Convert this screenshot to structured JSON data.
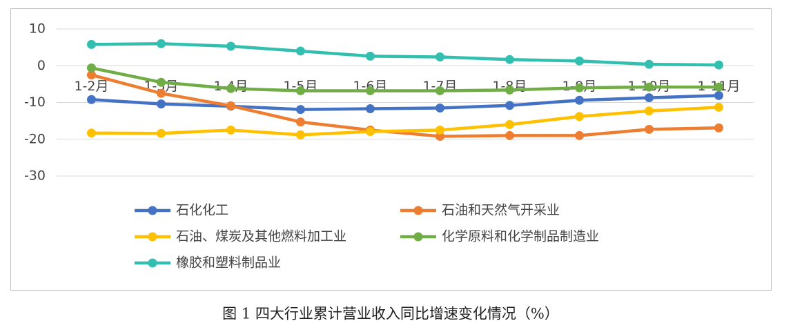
{
  "chart_data": {
    "type": "line",
    "title": "图 1  四大行业累计营业收入同比增速变化情况（%）",
    "categories": [
      "1-2月",
      "1-3月",
      "1-4月",
      "1-5月",
      "1-6月",
      "1-7月",
      "1-8月",
      "1-9月",
      "1-10月",
      "1-11月"
    ],
    "series": [
      {
        "name": "石化化工",
        "color": "#4472c4",
        "values": [
          -9.2,
          -10.4,
          -11,
          -11.9,
          -11.7,
          -11.5,
          -10.8,
          -9.4,
          -8.7,
          -8.1
        ]
      },
      {
        "name": "石油和天然气开采业",
        "color": "#ed7d31",
        "values": [
          -2.5,
          -7.5,
          -10.9,
          -15.3,
          -17.5,
          -19.2,
          -19,
          -19,
          -17.3,
          -16.9
        ]
      },
      {
        "name": "石油、煤炭及其他燃料加工业",
        "color": "#ffc000",
        "values": [
          -18.3,
          -18.4,
          -17.5,
          -18.8,
          -17.9,
          -17.5,
          -16,
          -13.8,
          -12.3,
          -11.3
        ]
      },
      {
        "name": "化学原料和化学制品制造业",
        "color": "#70ad47",
        "values": [
          -0.6,
          -4.5,
          -6.2,
          -6.8,
          -6.8,
          -6.8,
          -6.6,
          -6,
          -5.8,
          -5.8
        ]
      },
      {
        "name": "橡胶和塑料制品业",
        "color": "#33bfb0",
        "values": [
          5.8,
          6,
          5.3,
          4,
          2.6,
          2.4,
          1.7,
          1.3,
          0.4,
          0.2
        ]
      }
    ],
    "ylim": [
      -30,
      10
    ],
    "yticks": [
      -30,
      -20,
      -10,
      0,
      10
    ],
    "grid": true
  }
}
